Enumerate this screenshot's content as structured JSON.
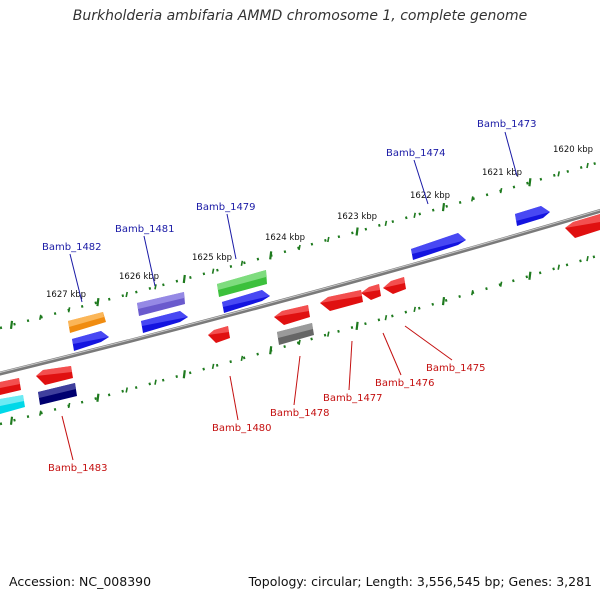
{
  "title": "Burkholderia ambifaria AMMD chromosome 1, complete genome",
  "footer": {
    "accession": "Accession: NC_008390",
    "summary": "Topology: circular; Length: 3,556,545 bp; Genes: 3,281"
  },
  "colors": {
    "backbone": "#7a7a7a",
    "ticks": "#1e7a1e",
    "label_forward": "#1a1aa6",
    "label_reverse": "#c41010"
  },
  "scale_labels": [
    "1620 kbp",
    "1621 kbp",
    "1622 kbp",
    "1623 kbp",
    "1624 kbp",
    "1625 kbp",
    "1626 kbp",
    "1627 kbp"
  ],
  "genes": [
    {
      "label": "Bamb_1473",
      "strand": "forward",
      "color": "#1414e0"
    },
    {
      "label": "Bamb_1474",
      "strand": "forward",
      "color": "#1414e0"
    },
    {
      "label": "Bamb_1475",
      "strand": "reverse",
      "color": "#e01010"
    },
    {
      "label": "Bamb_1476",
      "strand": "reverse",
      "color": "#e01010"
    },
    {
      "label": "Bamb_1477",
      "strand": "reverse",
      "color": "#e01010"
    },
    {
      "label": "Bamb_1478",
      "strand": "reverse",
      "color": "#e01010"
    },
    {
      "label": "Bamb_1479",
      "strand": "forward",
      "color": "#3cc03c"
    },
    {
      "label": "Bamb_1480",
      "strand": "reverse",
      "color": "#e01010"
    },
    {
      "label": "Bamb_1481",
      "strand": "forward",
      "color": "#6a5acd"
    },
    {
      "label": "Bamb_1482",
      "strand": "forward",
      "color": "#f08c10"
    },
    {
      "label": "Bamb_1483",
      "strand": "reverse",
      "color": "#000070"
    }
  ]
}
